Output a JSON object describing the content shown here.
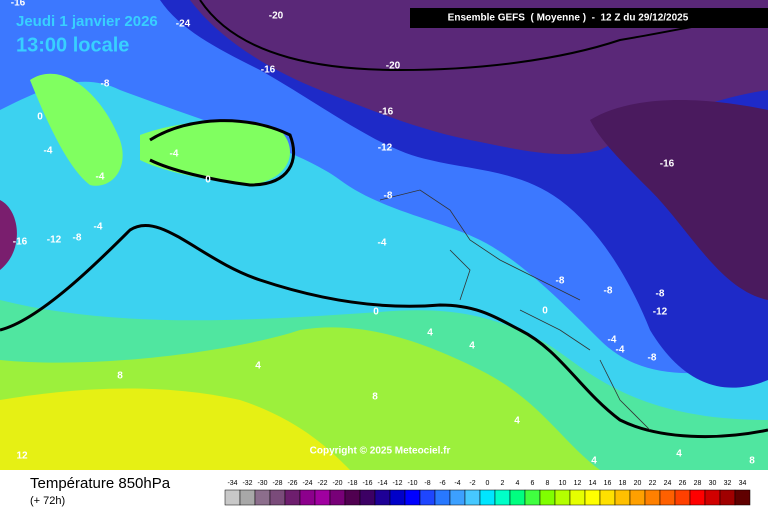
{
  "header": {
    "date": "Jeudi 1 janvier 2026",
    "time": "13:00 locale",
    "run": "Ensemble GEFS  ( Moyenne )  -  12 Z du 29/12/2025"
  },
  "map": {
    "copyright": "Copyright © 2025 Meteociel.fr",
    "contour_labels": [
      -16,
      -24,
      -20,
      -16,
      -20,
      -8,
      0,
      -16,
      -4,
      -12,
      -4,
      -4,
      0,
      -8,
      -16,
      -12,
      -8,
      -4,
      -4,
      -8,
      -8,
      -8,
      -12,
      -16,
      0,
      0,
      4,
      4,
      -4,
      -4,
      -8,
      4,
      8,
      8,
      4,
      4,
      4,
      8,
      12
    ]
  },
  "footer": {
    "title": "Température 850hPa",
    "lead": "(+ 72h)"
  },
  "legend": {
    "ticks": [
      -34,
      -32,
      -30,
      -28,
      -26,
      -24,
      -22,
      -20,
      -18,
      -16,
      -14,
      -12,
      -10,
      -8,
      -6,
      -4,
      -2,
      0,
      2,
      4,
      6,
      8,
      10,
      12,
      14,
      16,
      18,
      20,
      22,
      24,
      26,
      28,
      30,
      32,
      34
    ],
    "colors": [
      "#c8c8c8",
      "#a8a8a8",
      "#8c6e8c",
      "#7a4b7a",
      "#6e1e6e",
      "#8c008c",
      "#a000a0",
      "#780078",
      "#500050",
      "#3c0064",
      "#1e0096",
      "#0000c8",
      "#0000ff",
      "#1e46ff",
      "#2878ff",
      "#3ca0ff",
      "#46c8ff",
      "#00e6ff",
      "#00ffc8",
      "#00ff80",
      "#40ff40",
      "#80ff00",
      "#b4ff00",
      "#e6ff00",
      "#ffff00",
      "#ffe000",
      "#ffc000",
      "#ffa000",
      "#ff8000",
      "#ff6000",
      "#ff4000",
      "#ff0000",
      "#d00000",
      "#a00000",
      "#600000"
    ]
  }
}
